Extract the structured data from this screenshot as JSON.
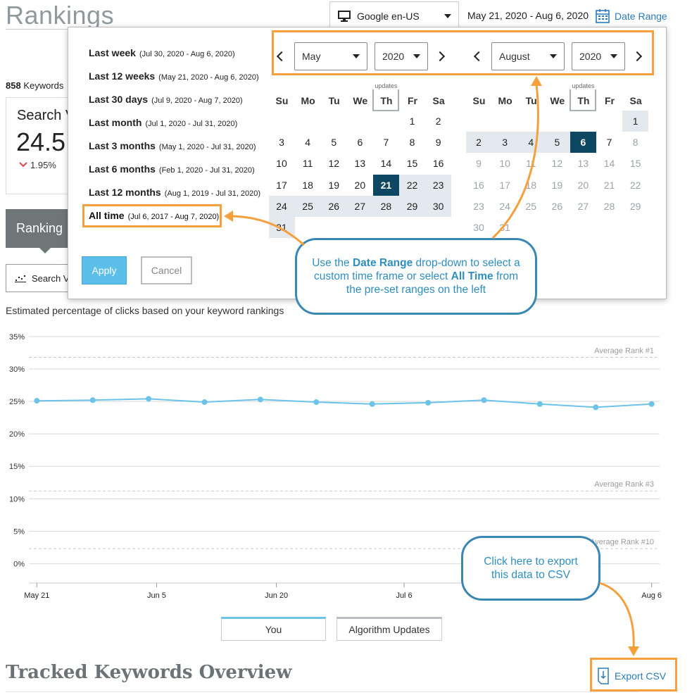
{
  "header": {
    "title": "Rankings",
    "engine": "Google en-US",
    "date_range": "May 21, 2020 - Aug 6, 2020",
    "date_range_button": "Date Range"
  },
  "summary": {
    "keyword_count": "858",
    "keyword_label": "Keywords",
    "metric_label": "Search V",
    "metric_value": "24.5",
    "metric_change": "1.95%",
    "tab_label": "Ranking",
    "view_button": "Search V"
  },
  "date_picker": {
    "presets": [
      {
        "label": "Last week",
        "range": "(Jul 30, 2020 - Aug 6, 2020)"
      },
      {
        "label": "Last 12 weeks",
        "range": "(May 21, 2020 - Aug 6, 2020)"
      },
      {
        "label": "Last 30 days",
        "range": "(Jul 9, 2020 - Aug 7, 2020)"
      },
      {
        "label": "Last month",
        "range": "(Jul 1, 2020 - Jul 31, 2020)"
      },
      {
        "label": "Last 3 months",
        "range": "(May 1, 2020 - Jul 31, 2020)"
      },
      {
        "label": "Last 6 months",
        "range": "(Feb 1, 2020 - Jul 31, 2020)"
      },
      {
        "label": "Last 12 months",
        "range": "(Aug 1, 2019 - Jul 31, 2020)"
      },
      {
        "label": "All time",
        "range": "(Jul 6, 2017 - Aug 7, 2020)",
        "active": true
      }
    ],
    "apply": "Apply",
    "cancel": "Cancel",
    "calendars": [
      {
        "month": "May",
        "year": "2020",
        "weekdays": [
          "Su",
          "Mo",
          "Tu",
          "We",
          "Th",
          "Fr",
          "Sa"
        ],
        "updates": {
          "label": "updates",
          "weekday": "Th"
        },
        "weeks": [
          [
            null,
            null,
            null,
            null,
            null,
            1,
            2
          ],
          [
            3,
            4,
            5,
            6,
            7,
            8,
            9
          ],
          [
            10,
            11,
            12,
            13,
            14,
            15,
            16
          ],
          [
            17,
            18,
            19,
            20,
            21,
            22,
            23
          ],
          [
            24,
            25,
            26,
            27,
            28,
            29,
            30
          ],
          [
            31,
            null,
            null,
            null,
            null,
            null,
            null
          ]
        ],
        "selected": 21,
        "range": [
          21,
          31
        ]
      },
      {
        "month": "August",
        "year": "2020",
        "weekdays": [
          "Su",
          "Mo",
          "Tu",
          "We",
          "Th",
          "Fr",
          "Sa"
        ],
        "updates": {
          "label": "updates",
          "weekday": "Th"
        },
        "weeks": [
          [
            null,
            null,
            null,
            null,
            null,
            null,
            1
          ],
          [
            2,
            3,
            4,
            5,
            6,
            7,
            8
          ],
          [
            9,
            10,
            11,
            12,
            13,
            14,
            15
          ],
          [
            16,
            17,
            18,
            19,
            20,
            21,
            22
          ],
          [
            23,
            24,
            25,
            26,
            27,
            28,
            29
          ],
          [
            30,
            31,
            null,
            null,
            null,
            null,
            null
          ]
        ],
        "selected": 6,
        "range": [
          1,
          6
        ],
        "disabled_from": 8
      }
    ]
  },
  "callouts": [
    {
      "parts": [
        {
          "text": "Use the "
        },
        {
          "text": "Date Range",
          "bold": true
        },
        {
          "text": " drop-down to select a custom time frame or select "
        },
        {
          "text": "All Time",
          "bold": true
        },
        {
          "text": " from the pre-set ranges on the left"
        }
      ]
    },
    {
      "parts": [
        {
          "text": "Click here to export this data to CSV"
        }
      ]
    }
  ],
  "chart_data": {
    "type": "line",
    "subtitle": "Estimated percentage of clicks based on your keyword rankings",
    "x": [
      "May 21",
      "May 28",
      "Jun 4",
      "Jun 11",
      "Jun 18",
      "Jun 25",
      "Jul 2",
      "Jul 9",
      "Jul 16",
      "Jul 23",
      "Jul 30",
      "Aug 6"
    ],
    "series": [
      {
        "name": "You",
        "color": "#6cc3ea",
        "values": [
          25.1,
          25.2,
          25.4,
          24.9,
          25.3,
          24.9,
          24.6,
          24.8,
          25.2,
          24.6,
          24.1,
          24.6
        ]
      }
    ],
    "legend_extra": [
      {
        "name": "Algorithm Updates",
        "color": "#b9bec1"
      }
    ],
    "xlim": [
      "May 20",
      "Aug 7"
    ],
    "xticks": [
      "May 21",
      "Jun 5",
      "Jun 20",
      "Jul 6",
      "Aug 6"
    ],
    "ylim": [
      -3,
      35
    ],
    "yticks": [
      {
        "value": 0,
        "label": "0%"
      },
      {
        "value": 5,
        "label": "5%"
      },
      {
        "value": 10,
        "label": "10%"
      },
      {
        "value": 15,
        "label": "15%"
      },
      {
        "value": 20,
        "label": "20%"
      },
      {
        "value": 25,
        "label": "25%"
      },
      {
        "value": 30,
        "label": "30%"
      },
      {
        "value": 35,
        "label": "35%"
      }
    ],
    "grid": true,
    "reference_lines": [
      {
        "label": "Average Rank #1",
        "value": 31.8
      },
      {
        "label": "Average Rank #3",
        "value": 11.2
      },
      {
        "label": "Average Rank #10",
        "value": 2.3
      }
    ]
  },
  "footer": {
    "section_title": "Tracked Keywords Overview",
    "export_button": "Export CSV"
  }
}
